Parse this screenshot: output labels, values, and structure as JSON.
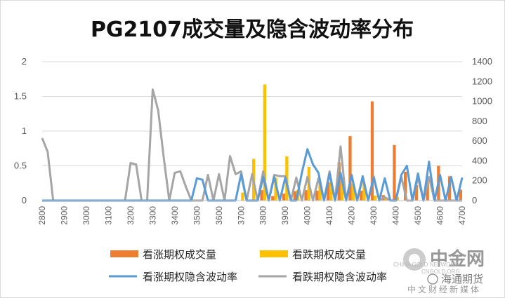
{
  "chart_data": {
    "type": "bar",
    "title": "PG2107成交量及隐含波动率分布",
    "x": [
      2800,
      2825,
      2850,
      2875,
      2900,
      2925,
      2950,
      2975,
      3000,
      3025,
      3050,
      3075,
      3100,
      3125,
      3150,
      3175,
      3200,
      3225,
      3250,
      3275,
      3300,
      3325,
      3350,
      3375,
      3400,
      3425,
      3450,
      3475,
      3500,
      3525,
      3550,
      3575,
      3600,
      3625,
      3650,
      3675,
      3700,
      3725,
      3750,
      3775,
      3800,
      3825,
      3850,
      3875,
      3900,
      3925,
      3950,
      3975,
      4000,
      4025,
      4050,
      4075,
      4100,
      4125,
      4150,
      4175,
      4200,
      4225,
      4250,
      4275,
      4300,
      4325,
      4350,
      4375,
      4400,
      4425,
      4450,
      4475,
      4500,
      4525,
      4550,
      4575,
      4600,
      4625,
      4650,
      4675,
      4700
    ],
    "x_tick_labels": [
      "2800",
      "2900",
      "3000",
      "3100",
      "3200",
      "3300",
      "3400",
      "3500",
      "3600",
      "3700",
      "3800",
      "3900",
      "4000",
      "4100",
      "4200",
      "4300",
      "4400",
      "4500",
      "4600",
      "4700"
    ],
    "y_left_ticks": [
      "0",
      "0.5",
      "1",
      "1.5",
      "2"
    ],
    "y_right_ticks": [
      "0",
      "200",
      "400",
      "600",
      "800",
      "1000",
      "1200",
      "1400"
    ],
    "y_left_range": [
      0,
      2
    ],
    "y_right_range": [
      0,
      1400
    ],
    "legend_position": "bottom",
    "series": [
      {
        "name": "看涨期权成交量",
        "type": "bar",
        "axis": "right",
        "color": "#ED7D31",
        "values": [
          0,
          0,
          0,
          0,
          0,
          0,
          0,
          0,
          0,
          0,
          0,
          0,
          0,
          0,
          0,
          0,
          0,
          0,
          0,
          0,
          0,
          0,
          0,
          0,
          0,
          0,
          0,
          0,
          0,
          0,
          0,
          0,
          0,
          0,
          0,
          0,
          0,
          0,
          0,
          0,
          105,
          0,
          45,
          0,
          70,
          0,
          95,
          0,
          105,
          0,
          100,
          0,
          185,
          0,
          385,
          0,
          650,
          0,
          100,
          0,
          1000,
          0,
          55,
          0,
          560,
          0,
          290,
          0,
          155,
          0,
          185,
          0,
          350,
          0,
          245,
          0,
          110
        ]
      },
      {
        "name": "看跌期权成交量",
        "type": "bar",
        "axis": "right",
        "color": "#FFC000",
        "values": [
          0,
          0,
          0,
          0,
          0,
          0,
          0,
          0,
          0,
          0,
          0,
          0,
          0,
          0,
          0,
          0,
          0,
          0,
          0,
          0,
          0,
          0,
          0,
          0,
          0,
          0,
          0,
          0,
          0,
          0,
          0,
          0,
          0,
          0,
          0,
          0,
          80,
          0,
          420,
          0,
          1170,
          0,
          230,
          0,
          445,
          0,
          105,
          0,
          340,
          0,
          185,
          0,
          185,
          0,
          210,
          0,
          170,
          0,
          170,
          0,
          50,
          0,
          30,
          0,
          35,
          0,
          0,
          0,
          0,
          0,
          0,
          0,
          0,
          0,
          0,
          0,
          0
        ]
      },
      {
        "name": "看涨期权隐含波动率",
        "type": "line",
        "axis": "left",
        "color": "#5B9BD5",
        "values": [
          0,
          0,
          0,
          0,
          0,
          0,
          0,
          0,
          0,
          0,
          0,
          0,
          0,
          0,
          0,
          0,
          0,
          0,
          0,
          0,
          0,
          0,
          0,
          0,
          0,
          0,
          0,
          0,
          0.32,
          0.3,
          0,
          0,
          0,
          0,
          0,
          0,
          0.38,
          0,
          0,
          0,
          0.34,
          0,
          0.34,
          0,
          0.33,
          0,
          0,
          0.4,
          0.74,
          0.52,
          0.4,
          0,
          0.39,
          0,
          0.4,
          0,
          0.37,
          0,
          0.35,
          0,
          0.33,
          0,
          0.32,
          0,
          0,
          0.37,
          0.5,
          0,
          0.39,
          0,
          0.56,
          0,
          0.37,
          0,
          0.34,
          0,
          0.33
        ]
      },
      {
        "name": "看跌期权隐含波动率",
        "type": "line",
        "axis": "left",
        "color": "#A5A5A5",
        "values": [
          0.9,
          0.7,
          0,
          0,
          0,
          0,
          0,
          0,
          0,
          0,
          0,
          0,
          0,
          0,
          0,
          0,
          0.54,
          0.52,
          0,
          0,
          1.6,
          1.3,
          0.62,
          0,
          0.4,
          0.42,
          0.2,
          0,
          0,
          0,
          0.37,
          0,
          0.38,
          0,
          0.64,
          0.38,
          0.42,
          0,
          0.38,
          0,
          0.42,
          0,
          0.37,
          0.35,
          0.35,
          0,
          0.33,
          0,
          0.34,
          0,
          0.32,
          0,
          0.42,
          0,
          0.78,
          0,
          0.36,
          0,
          0.32,
          0,
          0.35,
          0,
          0.05,
          0,
          0,
          0.34,
          0,
          0,
          0.33,
          0,
          0.34,
          0,
          0,
          0,
          0,
          0,
          0
        ]
      }
    ]
  },
  "watermark": {
    "brand_cn": "中金网",
    "brand_en": "CNGOLD.ORG",
    "brand_sub": "中文财经新媒体",
    "wechat_source": "海通期货",
    "small_text": "CHINA GOLD NETWORK"
  }
}
